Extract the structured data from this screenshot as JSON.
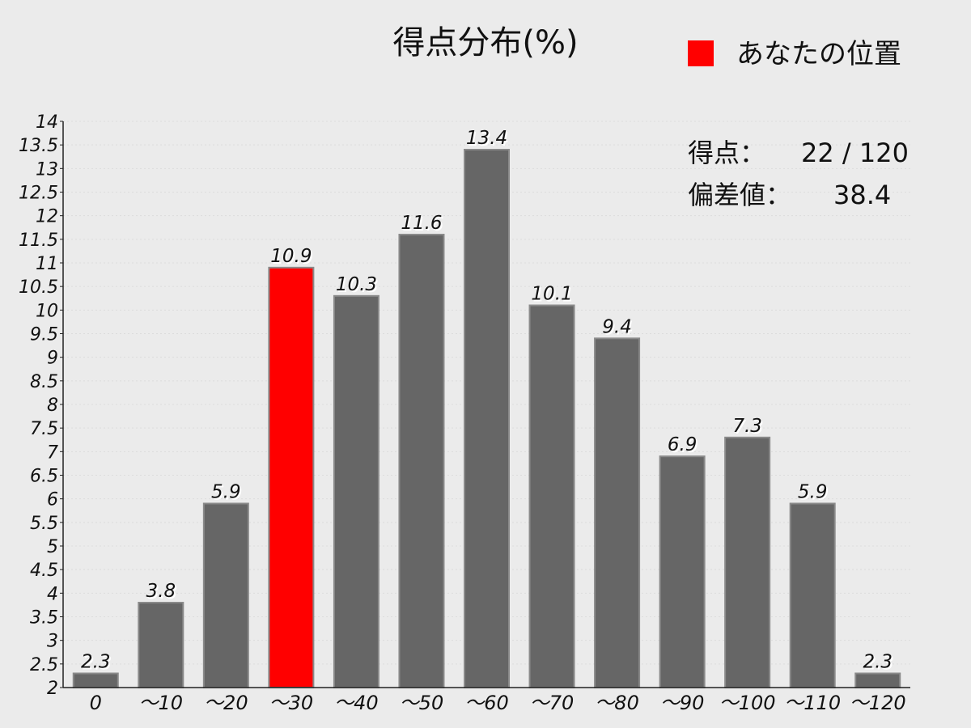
{
  "chart_data": {
    "type": "bar",
    "title": "得点分布(%)",
    "legend": {
      "label": "あなたの位置",
      "color": "#ff0000",
      "placement": "top-right"
    },
    "categories": [
      "0",
      "～10",
      "～20",
      "～30",
      "～40",
      "～50",
      "～60",
      "～70",
      "～80",
      "～90",
      "～100",
      "～110",
      "～120"
    ],
    "values": [
      2.3,
      3.8,
      5.9,
      10.9,
      10.3,
      11.6,
      13.4,
      10.1,
      9.4,
      6.9,
      7.3,
      5.9,
      2.3
    ],
    "value_labels": [
      "2.3",
      "3.8",
      "5.9",
      "10.9",
      "10.3",
      "11.6",
      "13.4",
      "10.1",
      "9.4",
      "6.9",
      "7.3",
      "5.9",
      "2.3"
    ],
    "highlight_index": 3,
    "bar_color": "#666666",
    "highlight_color": "#ff0000",
    "ylim": [
      2,
      14
    ],
    "ytick_step": 0.5,
    "yticks": [
      "2",
      "2.5",
      "3",
      "3.5",
      "4",
      "4.5",
      "5",
      "5.5",
      "6",
      "6.5",
      "7",
      "7.5",
      "8",
      "8.5",
      "9",
      "9.5",
      "10",
      "10.5",
      "11",
      "11.5",
      "12",
      "12.5",
      "13",
      "13.5",
      "14"
    ],
    "grid": true,
    "xlabel": "",
    "ylabel": ""
  },
  "info": {
    "score_label": "得点：",
    "score_value": "22 / 120",
    "deviation_label": "偏差値：",
    "deviation_value": "38.4"
  }
}
